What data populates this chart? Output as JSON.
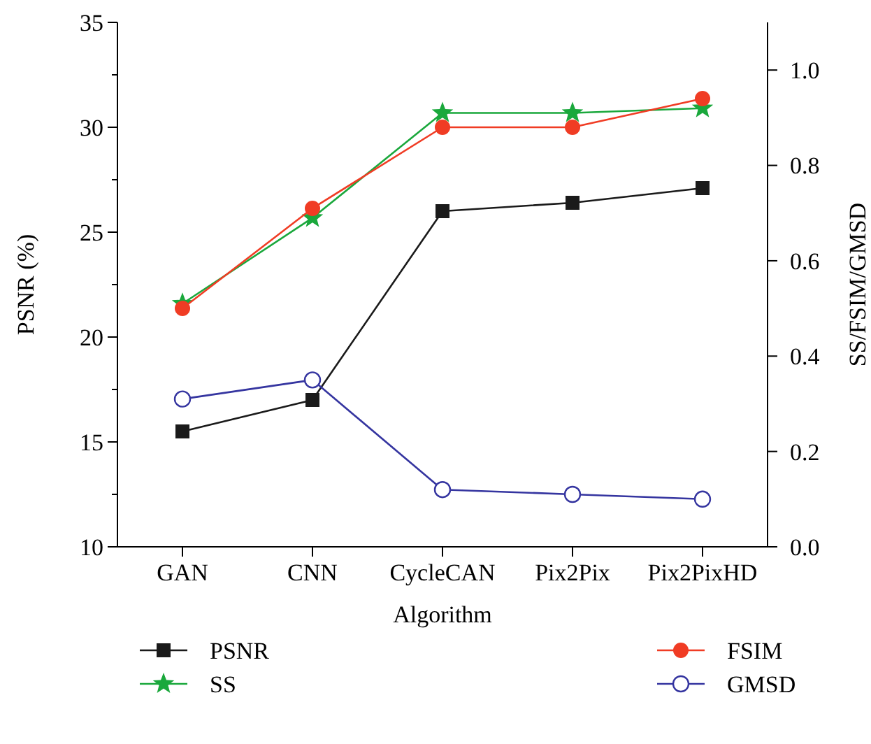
{
  "chart_data": {
    "type": "line",
    "xlabel": "Algorithm",
    "ylabel": "PSNR (%)",
    "y2label": "SS/FSIM/GMSD",
    "categories": [
      "GAN",
      "CNN",
      "CycleCAN",
      "Pix2Pix",
      "Pix2PixHD"
    ],
    "ylim": [
      10,
      35
    ],
    "yticks": [
      10,
      {
        "value": 12.5,
        "label": null
      },
      15,
      {
        "value": 17.5,
        "label": null
      },
      20,
      {
        "value": 22.5,
        "label": null
      },
      25,
      {
        "value": 27.5,
        "label": null
      },
      30,
      {
        "value": 32.5,
        "label": null
      },
      35
    ],
    "y2lim": [
      0,
      1.1
    ],
    "y2ticks": [
      {
        "value": 0,
        "label": "0.0"
      },
      0.2,
      0.4,
      0.6,
      0.8,
      {
        "value": 1,
        "label": "1.0"
      }
    ],
    "legend": "bottom",
    "grid": false,
    "series": [
      {
        "name": "PSNR",
        "color": "#1a1a1a",
        "marker": "square",
        "values": [
          15.5,
          17.0,
          26.0,
          26.4,
          27.1
        ]
      },
      {
        "name": "SS",
        "color": "#1aa83c",
        "marker": "star",
        "axis": "y2",
        "values": [
          0.51,
          0.69,
          0.91,
          0.91,
          0.92
        ]
      },
      {
        "name": "FSIM",
        "color": "#f03c24",
        "marker": "circle",
        "axis": "y2",
        "values": [
          0.5,
          0.71,
          0.88,
          0.88,
          0.94
        ]
      },
      {
        "name": "GMSD",
        "color": "#3535a0",
        "marker": "circle-open",
        "axis": "y2",
        "values": [
          0.31,
          0.35,
          0.12,
          0.11,
          0.1
        ]
      }
    ]
  }
}
